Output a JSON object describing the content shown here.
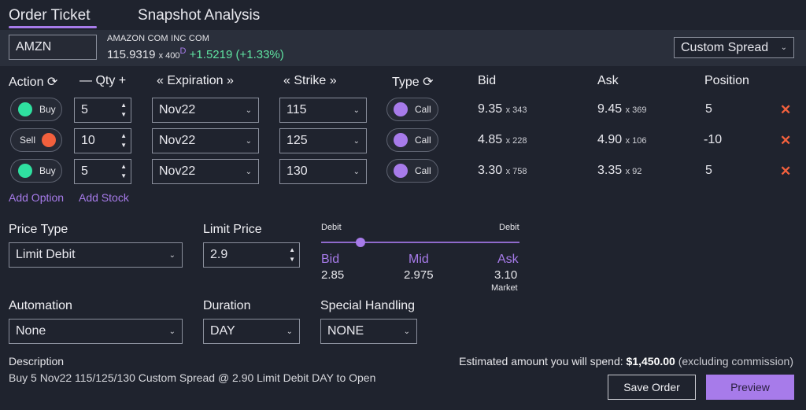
{
  "tabs": [
    {
      "label": "Order Ticket",
      "active": true
    },
    {
      "label": "Snapshot Analysis",
      "active": false
    }
  ],
  "symbol": {
    "value": "AMZN",
    "company": "AMAZON COM INC COM",
    "last": "115.9319",
    "size": "x 400",
    "flag": "D",
    "change": "+1.5219 (+1.33%)"
  },
  "strategy": {
    "selected": "Custom Spread"
  },
  "headers": {
    "action": "Action",
    "qty": "Qty",
    "expiration": "Expiration",
    "strike": "Strike",
    "type": "Type",
    "bid": "Bid",
    "ask": "Ask",
    "position": "Position"
  },
  "legs": [
    {
      "action": "Buy",
      "action_color": "#2fe0a0",
      "qty": "5",
      "expiration": "Nov22",
      "strike": "115",
      "type": "Call",
      "bid": "9.35",
      "bid_size": "x 343",
      "ask": "9.45",
      "ask_size": "x 369",
      "position": "5"
    },
    {
      "action": "Sell",
      "action_color": "#f2603d",
      "qty": "10",
      "expiration": "Nov22",
      "strike": "125",
      "type": "Call",
      "bid": "4.85",
      "bid_size": "x 228",
      "ask": "4.90",
      "ask_size": "x 106",
      "position": "-10"
    },
    {
      "action": "Buy",
      "action_color": "#2fe0a0",
      "qty": "5",
      "expiration": "Nov22",
      "strike": "130",
      "type": "Call",
      "bid": "3.30",
      "bid_size": "x 758",
      "ask": "3.35",
      "ask_size": "x 92",
      "position": "5"
    }
  ],
  "links": {
    "add_option": "Add Option",
    "add_stock": "Add Stock"
  },
  "price_type": {
    "label": "Price Type",
    "value": "Limit Debit"
  },
  "limit_price": {
    "label": "Limit Price",
    "value": "2.9"
  },
  "slider": {
    "left_label": "Debit",
    "right_label": "Debit",
    "bid_label": "Bid",
    "bid_value": "2.85",
    "mid_label": "Mid",
    "mid_value": "2.975",
    "ask_label": "Ask",
    "ask_value": "3.10",
    "market_label": "Market"
  },
  "automation": {
    "label": "Automation",
    "value": "None"
  },
  "duration": {
    "label": "Duration",
    "value": "DAY"
  },
  "special_handling": {
    "label": "Special Handling",
    "value": "NONE"
  },
  "description": {
    "label": "Description",
    "text": "Buy 5 Nov22 115/125/130 Custom Spread @ 2.90 Limit Debit DAY to Open"
  },
  "estimate": {
    "prefix": "Estimated amount you will spend:",
    "amount": "$1,450.00",
    "suffix": "(excluding commission)"
  },
  "buttons": {
    "save": "Save Order",
    "preview": "Preview"
  },
  "colors": {
    "accent": "#a77bea",
    "buy": "#2fe0a0",
    "sell": "#f2603d",
    "change": "#5fe3a1"
  }
}
